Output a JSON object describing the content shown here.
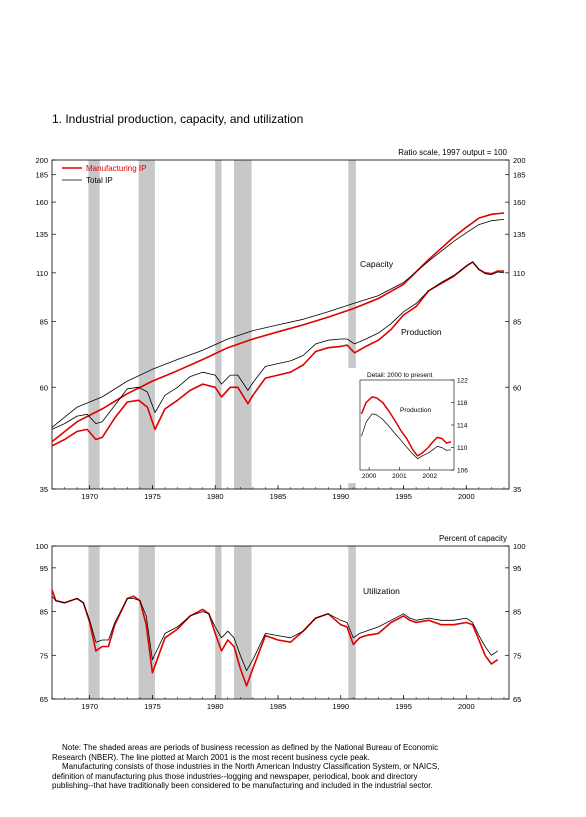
{
  "page": {
    "title": "1.  Industrial production, capacity, and utilization",
    "note_lines": [
      "Note: The shaded areas are periods of business recession as defined by the National Bureau of Economic",
      "Research (NBER).  The line plotted at March 2001 is the most recent business cycle peak.",
      "Manufacturing consists of those industries in the North American Industry Classification System, or NAICS,",
      "definition of manufacturing plus those industries--logging and newspaper, periodical, book and directory",
      "publishing--that have traditionally been considered to be manufacturing and included in the industrial sector."
    ]
  },
  "colors": {
    "manufacturing": "#e00000",
    "total": "#000000",
    "recession": "#c8c8c8"
  },
  "chart_data": [
    {
      "type": "line",
      "scale": "log",
      "scale_note": "Ratio scale, 1997 output = 100",
      "xlim": [
        1967.0,
        2003.4
      ],
      "ylim": [
        35,
        200
      ],
      "x_ticks": [
        1970,
        1975,
        1980,
        1985,
        1990,
        1995,
        2000
      ],
      "x_tick_labels": [
        "1970",
        "1975",
        "1980",
        "1985",
        "1990",
        "1995",
        "2000"
      ],
      "y_ticks": [
        35,
        60,
        85,
        110,
        135,
        160,
        185,
        200
      ],
      "y_tick_labels": [
        "35",
        "60",
        "85",
        "110",
        "135",
        "160",
        "185",
        "200"
      ],
      "legend": [
        "Manufacturing IP",
        "Total IP"
      ],
      "annotations": [
        "Capacity",
        "Production"
      ],
      "recessions": [
        [
          1969.9,
          1970.8
        ],
        [
          1973.9,
          1975.2
        ],
        [
          1980.0,
          1980.5
        ],
        [
          1981.5,
          1982.9
        ],
        [
          1990.6,
          1991.2
        ]
      ],
      "series": [
        {
          "name": "Manufacturing IP",
          "group": "Capacity",
          "x": [
            1967,
            1969,
            1971,
            1973,
            1975,
            1977,
            1979,
            1981,
            1983,
            1985,
            1987,
            1989,
            1991,
            1993,
            1995,
            1997,
            1999,
            2000,
            2001,
            2002,
            2003
          ],
          "y": [
            45,
            50,
            53.5,
            58,
            62,
            65.5,
            69.5,
            74,
            77.5,
            80.5,
            83.5,
            87,
            91,
            96,
            103.5,
            118,
            133,
            140,
            147,
            150,
            151
          ]
        },
        {
          "name": "Total IP",
          "group": "Capacity",
          "x": [
            1967,
            1969,
            1971,
            1973,
            1975,
            1977,
            1979,
            1981,
            1983,
            1985,
            1987,
            1989,
            1991,
            1993,
            1995,
            1997,
            1999,
            2000,
            2001,
            2002,
            2003
          ],
          "y": [
            48.5,
            54,
            57,
            62,
            66,
            69.5,
            73,
            77.5,
            81,
            83.5,
            86,
            89.5,
            93.5,
            97.5,
            104.5,
            117,
            130,
            136,
            142,
            145,
            146
          ]
        },
        {
          "name": "Manufacturing IP",
          "group": "Production",
          "x": [
            1967,
            1968,
            1969,
            1969.8,
            1970.5,
            1971,
            1972,
            1973,
            1973.9,
            1974.6,
            1975.2,
            1976,
            1977,
            1978,
            1979,
            1980,
            1980.5,
            1981.2,
            1981.8,
            1982.6,
            1983,
            1984,
            1985,
            1986,
            1987,
            1988,
            1989,
            1990,
            1990.5,
            1991.1,
            1992,
            1993,
            1994,
            1995,
            1996,
            1997,
            1998,
            1999,
            2000,
            2000.5,
            2001,
            2001.5,
            2002,
            2002.5,
            2003
          ],
          "y": [
            44,
            45.5,
            47.5,
            48,
            45.5,
            46,
            51,
            55.5,
            56,
            54,
            48,
            53.5,
            56,
            59,
            61,
            60,
            57,
            60,
            60,
            55,
            57.5,
            63,
            64,
            65,
            67.5,
            72.5,
            74,
            74.5,
            75,
            72,
            74.5,
            77,
            81.5,
            88,
            92,
            100,
            104,
            108,
            114,
            116.5,
            112,
            110,
            109.5,
            111,
            111
          ]
        },
        {
          "name": "Total IP",
          "group": "Production",
          "x": [
            1967,
            1968,
            1969,
            1969.8,
            1970.5,
            1971,
            1972,
            1973,
            1973.9,
            1974.6,
            1975.2,
            1976,
            1977,
            1978,
            1979,
            1980,
            1980.5,
            1981.2,
            1981.8,
            1982.6,
            1983,
            1984,
            1985,
            1986,
            1987,
            1988,
            1989,
            1990,
            1990.5,
            1991.1,
            1992,
            1993,
            1994,
            1995,
            1996,
            1997,
            1998,
            1999,
            2000,
            2000.5,
            2001,
            2001.5,
            2002,
            2002.5,
            2003
          ],
          "y": [
            48,
            49.5,
            51.5,
            52,
            49.5,
            50,
            54.5,
            59.5,
            60,
            58.5,
            52.5,
            57.5,
            60,
            63.5,
            65,
            64,
            61,
            64,
            64,
            59,
            61.5,
            67,
            68,
            69,
            71,
            75.5,
            77,
            77.5,
            77.5,
            75.5,
            77.5,
            80,
            84,
            89.5,
            93.5,
            100,
            104.5,
            108.5,
            114,
            116.5,
            112,
            109.5,
            109,
            110.5,
            110
          ]
        }
      ],
      "inset": {
        "title": "Detail: 2000 to present",
        "label": "Production",
        "xlim": [
          1999.7,
          2002.8
        ],
        "ylim": [
          106,
          122
        ],
        "x_ticks": [
          2000,
          2001,
          2002
        ],
        "x_tick_labels": [
          "2000",
          "2001",
          "2002"
        ],
        "y_ticks": [
          106,
          110,
          114,
          118,
          122
        ],
        "y_tick_labels": [
          "106",
          "110",
          "114",
          "118",
          "122"
        ],
        "series": [
          {
            "name": "Manufacturing IP",
            "x": [
              1999.75,
              1999.9,
              2000.1,
              2000.25,
              2000.45,
              2000.65,
              2000.85,
              2001.05,
              2001.25,
              2001.45,
              2001.6,
              2001.75,
              2001.95,
              2002.1,
              2002.25,
              2002.4,
              2002.55,
              2002.7
            ],
            "y": [
              116,
              118,
              119,
              118.8,
              118,
              116.5,
              114.8,
              113,
              111.5,
              109.5,
              108.5,
              109,
              110,
              111,
              111.8,
              111.6,
              110.8,
              111
            ]
          },
          {
            "name": "Total IP",
            "x": [
              1999.75,
              1999.9,
              2000.1,
              2000.25,
              2000.45,
              2000.65,
              2000.85,
              2001.05,
              2001.25,
              2001.45,
              2001.6,
              2001.75,
              2001.95,
              2002.1,
              2002.25,
              2002.4,
              2002.55,
              2002.7
            ],
            "y": [
              112,
              114.5,
              116,
              115.8,
              115,
              113.8,
              112.5,
              111.3,
              110,
              108.8,
              108,
              108.5,
              109,
              109.6,
              110.2,
              110,
              109.5,
              109.6
            ]
          }
        ]
      }
    },
    {
      "type": "line",
      "ylabel": "Percent of capacity",
      "xlim": [
        1967.0,
        2003.4
      ],
      "ylim": [
        65,
        100
      ],
      "x_ticks": [
        1970,
        1975,
        1980,
        1985,
        1990,
        1995,
        2000
      ],
      "x_tick_labels": [
        "1970",
        "1975",
        "1980",
        "1985",
        "1990",
        "1995",
        "2000"
      ],
      "y_ticks": [
        65,
        75,
        85,
        95,
        100
      ],
      "y_tick_labels": [
        "65",
        "75",
        "85",
        "95",
        "100"
      ],
      "annotations": [
        "Utilization"
      ],
      "recessions": [
        [
          1969.9,
          1970.8
        ],
        [
          1973.9,
          1975.2
        ],
        [
          1980.0,
          1980.5
        ],
        [
          1981.5,
          1982.9
        ],
        [
          1990.6,
          1991.2
        ]
      ],
      "series": [
        {
          "name": "Manufacturing IP",
          "x": [
            1967,
            1967.3,
            1968,
            1969,
            1969.5,
            1970,
            1970.5,
            1971,
            1971.5,
            1972,
            1973,
            1973.5,
            1974,
            1974.5,
            1975,
            1975.5,
            1976,
            1977,
            1978,
            1979,
            1979.5,
            1980,
            1980.5,
            1981,
            1981.5,
            1982,
            1982.5,
            1983,
            1984,
            1985,
            1986,
            1987,
            1988,
            1989,
            1990,
            1990.5,
            1991,
            1991.5,
            1992,
            1993,
            1994,
            1995,
            1995.5,
            1996,
            1997,
            1998,
            1999,
            2000,
            2000.5,
            2001,
            2001.5,
            2002,
            2002.5
          ],
          "y": [
            90,
            87.5,
            87,
            88,
            87,
            82.5,
            76,
            77,
            77,
            82,
            88,
            88.5,
            87.5,
            82,
            71,
            75,
            79,
            81,
            84,
            85.5,
            84.5,
            80,
            76,
            78.5,
            77,
            72,
            68,
            72,
            79.5,
            78.5,
            78,
            80.5,
            83.5,
            84.5,
            82,
            81.5,
            77.5,
            79,
            79.5,
            80,
            82.5,
            84,
            83,
            82.5,
            83,
            82,
            82,
            82.5,
            82,
            78.5,
            75,
            73,
            74
          ]
        },
        {
          "name": "Total IP",
          "x": [
            1967,
            1967.3,
            1968,
            1969,
            1969.5,
            1970,
            1970.5,
            1971,
            1971.5,
            1972,
            1973,
            1973.5,
            1974,
            1974.5,
            1975,
            1975.5,
            1976,
            1977,
            1978,
            1979,
            1979.5,
            1980,
            1980.5,
            1981,
            1981.5,
            1982,
            1982.5,
            1983,
            1984,
            1985,
            1986,
            1987,
            1988,
            1989,
            1990,
            1990.5,
            1991,
            1991.5,
            1992,
            1993,
            1994,
            1995,
            1995.5,
            1996,
            1997,
            1998,
            1999,
            2000,
            2000.5,
            2001,
            2001.5,
            2002,
            2002.5
          ],
          "y": [
            88.5,
            87.5,
            87,
            88,
            87,
            83,
            78,
            78.5,
            78.5,
            82.5,
            88,
            88,
            87.5,
            84,
            74,
            77,
            80,
            81.5,
            84,
            85,
            84.5,
            81.5,
            79,
            80.5,
            79,
            75,
            71.5,
            74,
            80,
            79.5,
            79,
            80.5,
            83.5,
            84.5,
            83,
            82.5,
            79,
            80,
            80.5,
            81.5,
            83,
            84.5,
            83.5,
            83,
            83.5,
            83,
            83,
            83.5,
            82.5,
            79.5,
            77,
            75,
            76
          ]
        }
      ]
    }
  ]
}
